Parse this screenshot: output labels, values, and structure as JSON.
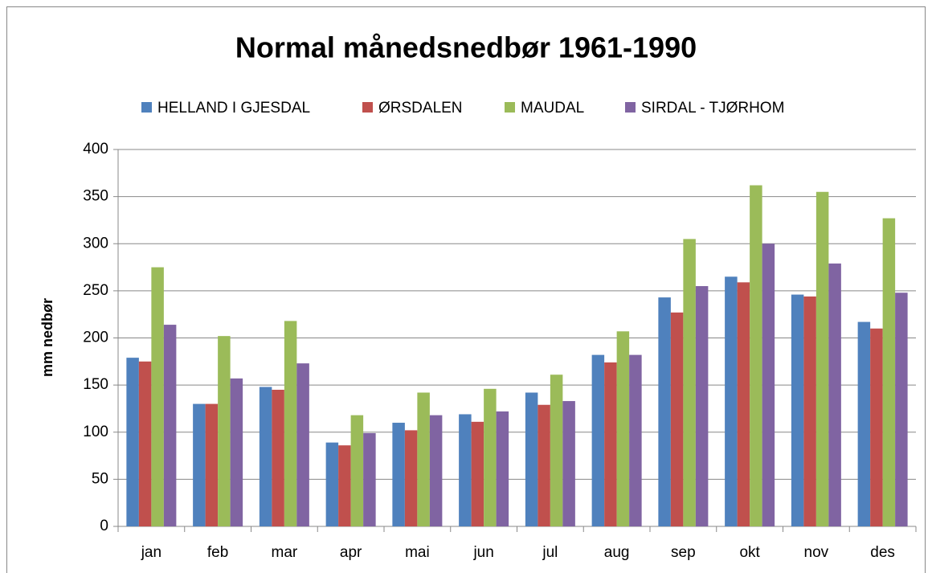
{
  "chart_data": {
    "type": "bar",
    "title": "Normal månedsnedbør 1961-1990",
    "y_label": "mm nedbør",
    "categories": [
      "jan",
      "feb",
      "mar",
      "apr",
      "mai",
      "jun",
      "jul",
      "aug",
      "sep",
      "okt",
      "nov",
      "des"
    ],
    "series": [
      {
        "name": "HELLAND I GJESDAL",
        "color": "#4f81bd",
        "values": [
          179,
          130,
          148,
          89,
          110,
          119,
          142,
          182,
          243,
          265,
          246,
          217
        ]
      },
      {
        "name": "ØRSDALEN",
        "color": "#c0504d",
        "values": [
          175,
          130,
          145,
          86,
          102,
          111,
          129,
          174,
          227,
          259,
          244,
          210
        ]
      },
      {
        "name": "MAUDAL",
        "color": "#9bbb59",
        "values": [
          275,
          202,
          218,
          118,
          142,
          146,
          161,
          207,
          305,
          362,
          355,
          327
        ]
      },
      {
        "name": "SIRDAL - TJØRHOM",
        "color": "#8064a2",
        "values": [
          214,
          157,
          173,
          99,
          118,
          122,
          133,
          182,
          255,
          300,
          279,
          248
        ]
      }
    ],
    "ylim": [
      0,
      400
    ],
    "yticks": [
      0,
      50,
      100,
      150,
      200,
      250,
      300,
      350,
      400
    ],
    "grid": true,
    "legend": "top"
  }
}
